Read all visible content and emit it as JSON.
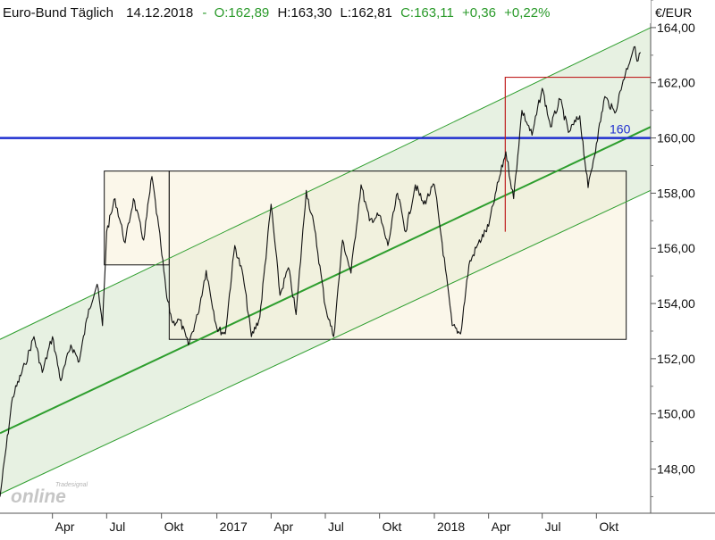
{
  "header": {
    "instrument": "Euro-Bund Täglich",
    "date": "14.12.2018",
    "open": "O:162,89",
    "high": "H:163,30",
    "low": "L:162,81",
    "close": "C:163,11",
    "change": "+0,36",
    "change_pct": "+0,22%"
  },
  "watermark": {
    "brand": "Tradesignal",
    "text": "online"
  },
  "colors": {
    "price": "#111111",
    "channel": "#2e9e2e",
    "channel_fill": "#e3efdd",
    "range_fill": "#f8f1dc",
    "horizontal_line": "#1f2fd0",
    "resistance": "#c02020",
    "header_positive": "#2a9a2a"
  },
  "chart_data": {
    "type": "line",
    "unit_label": "€/EUR",
    "y_ticks": [
      "164,00",
      "162,00",
      "160,00",
      "158,00",
      "156,00",
      "154,00",
      "152,00",
      "150,00",
      "148,00"
    ],
    "y_tick_values": [
      164,
      162,
      160,
      158,
      156,
      154,
      152,
      150,
      148
    ],
    "ylim": [
      146.4,
      165.0
    ],
    "x_domain": [
      "2016-01-04",
      "2018-12-31"
    ],
    "x_ticks": [
      {
        "label": "Apr",
        "date": "2016-04-01"
      },
      {
        "label": "Jul",
        "date": "2016-07-01"
      },
      {
        "label": "Okt",
        "date": "2016-10-01"
      },
      {
        "label": "2017",
        "date": "2017-01-02"
      },
      {
        "label": "Apr",
        "date": "2017-04-03"
      },
      {
        "label": "Jul",
        "date": "2017-07-03"
      },
      {
        "label": "Okt",
        "date": "2017-10-02"
      },
      {
        "label": "2018",
        "date": "2018-01-02"
      },
      {
        "label": "Apr",
        "date": "2018-04-03"
      },
      {
        "label": "Jul",
        "date": "2018-07-02"
      },
      {
        "label": "Okt",
        "date": "2018-10-01"
      }
    ],
    "series": [
      {
        "x": [
          "2016-01-04",
          "2016-01-25",
          "2016-02-15",
          "2016-03-01",
          "2016-03-15",
          "2016-04-01",
          "2016-04-15",
          "2016-05-02",
          "2016-05-16",
          "2016-06-01",
          "2016-06-15",
          "2016-06-24",
          "2016-07-01",
          "2016-07-15",
          "2016-08-01",
          "2016-08-15",
          "2016-09-01",
          "2016-09-15",
          "2016-09-30",
          "2016-10-10",
          "2016-10-20",
          "2016-11-01",
          "2016-11-15",
          "2016-12-01",
          "2016-12-15",
          "2017-01-02",
          "2017-01-16",
          "2017-02-01",
          "2017-02-15",
          "2017-03-01",
          "2017-03-15",
          "2017-04-03",
          "2017-04-18",
          "2017-05-02",
          "2017-05-15",
          "2017-06-01",
          "2017-06-15",
          "2017-07-03",
          "2017-07-17",
          "2017-08-01",
          "2017-08-15",
          "2017-09-01",
          "2017-09-15",
          "2017-10-02",
          "2017-10-16",
          "2017-11-01",
          "2017-11-15",
          "2017-12-01",
          "2017-12-15",
          "2018-01-02",
          "2018-01-15",
          "2018-02-01",
          "2018-02-15",
          "2018-03-01",
          "2018-03-15",
          "2018-04-03",
          "2018-04-16",
          "2018-05-02",
          "2018-05-15",
          "2018-05-29",
          "2018-06-15",
          "2018-07-02",
          "2018-07-16",
          "2018-08-01",
          "2018-08-15",
          "2018-09-03",
          "2018-09-17",
          "2018-10-01",
          "2018-10-15",
          "2018-11-01",
          "2018-11-15",
          "2018-12-03",
          "2018-12-10",
          "2018-12-14"
        ],
        "values": [
          147.0,
          150.6,
          151.8,
          152.8,
          151.5,
          152.8,
          151.2,
          152.5,
          151.9,
          153.8,
          154.7,
          153.2,
          156.6,
          157.8,
          156.2,
          157.8,
          156.3,
          158.6,
          156.1,
          154.2,
          153.3,
          153.4,
          152.5,
          153.6,
          155.2,
          153.1,
          152.9,
          156.1,
          155.0,
          152.8,
          153.5,
          157.6,
          154.3,
          155.3,
          153.6,
          158.1,
          156.7,
          153.9,
          152.8,
          156.3,
          155.1,
          158.3,
          157.0,
          157.2,
          156.1,
          158.0,
          156.6,
          158.3,
          157.6,
          158.3,
          156.2,
          153.2,
          152.9,
          155.4,
          156.1,
          156.8,
          158.1,
          159.5,
          157.8,
          161.0,
          160.1,
          161.8,
          160.4,
          161.4,
          160.2,
          160.8,
          158.2,
          159.8,
          161.5,
          160.9,
          162.1,
          163.3,
          162.8,
          163.1
        ]
      }
    ],
    "annotations": {
      "horizontal_line": {
        "value": 160,
        "label": "160"
      },
      "resistance": {
        "value": 162.2,
        "x_start": "2018-05-01",
        "x_end": "2018-12-31"
      },
      "channel": {
        "middle": [
          {
            "x": "2016-01-04",
            "y": 149.3
          },
          {
            "x": "2018-12-31",
            "y": 160.4
          }
        ],
        "upper": [
          {
            "x": "2016-01-04",
            "y": 152.7
          },
          {
            "x": "2018-12-31",
            "y": 164.0
          }
        ],
        "lower": [
          {
            "x": "2016-01-04",
            "y": 147.1
          },
          {
            "x": "2018-12-31",
            "y": 158.1
          }
        ]
      },
      "ranges": [
        {
          "x_start": "2016-06-27",
          "x_end": "2016-10-14",
          "y_low": 155.4,
          "y_high": 158.8
        },
        {
          "x_start": "2016-10-14",
          "x_end": "2018-11-20",
          "y_low": 152.7,
          "y_high": 158.8
        }
      ]
    }
  }
}
